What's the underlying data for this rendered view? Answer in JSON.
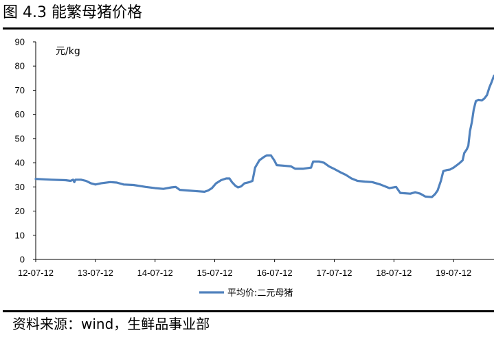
{
  "figure": {
    "title": "图 4.3 能繁母猪价格",
    "source": "资料来源：wind，生鲜品事业部"
  },
  "chart_data": {
    "type": "line",
    "unit_label": "元/kg",
    "ylim": [
      0,
      90
    ],
    "yticks": [
      0,
      10,
      20,
      30,
      40,
      50,
      60,
      70,
      80,
      90
    ],
    "xlim": [
      "2012-07-12",
      "2020-03-15"
    ],
    "xticks": [
      "12-07-12",
      "13-07-12",
      "14-07-12",
      "15-07-12",
      "16-07-12",
      "17-07-12",
      "18-07-12",
      "19-07-12"
    ],
    "grid": false,
    "legend_position": "bottom",
    "color": "#4F81BD",
    "series": [
      {
        "name": "平均价:二元母猪",
        "points": [
          [
            "2012-07-12",
            33.3
          ],
          [
            "2012-10-15",
            33.0
          ],
          [
            "2013-01-10",
            32.8
          ],
          [
            "2013-02-10",
            32.5
          ],
          [
            "2013-02-25",
            33.0
          ],
          [
            "2013-03-05",
            32.0
          ],
          [
            "2013-03-12",
            33.0
          ],
          [
            "2013-04-15",
            33.0
          ],
          [
            "2013-05-15",
            32.5
          ],
          [
            "2013-06-15",
            31.5
          ],
          [
            "2013-07-12",
            31.0
          ],
          [
            "2013-08-15",
            31.5
          ],
          [
            "2013-10-10",
            32.0
          ],
          [
            "2013-11-20",
            31.8
          ],
          [
            "2014-01-01",
            31.0
          ],
          [
            "2014-03-01",
            30.8
          ],
          [
            "2014-05-15",
            30.0
          ],
          [
            "2014-07-12",
            29.5
          ],
          [
            "2014-09-01",
            29.2
          ],
          [
            "2014-10-20",
            29.8
          ],
          [
            "2014-11-15",
            30.0
          ],
          [
            "2014-12-10",
            28.8
          ],
          [
            "2015-02-01",
            28.5
          ],
          [
            "2015-04-01",
            28.2
          ],
          [
            "2015-05-10",
            28.0
          ],
          [
            "2015-06-01",
            28.5
          ],
          [
            "2015-06-25",
            29.5
          ],
          [
            "2015-07-20",
            31.5
          ],
          [
            "2015-08-20",
            32.8
          ],
          [
            "2015-09-20",
            33.5
          ],
          [
            "2015-10-10",
            33.5
          ],
          [
            "2015-10-25",
            32.0
          ],
          [
            "2015-11-15",
            30.5
          ],
          [
            "2015-12-01",
            29.8
          ],
          [
            "2015-12-20",
            30.2
          ],
          [
            "2016-01-10",
            31.5
          ],
          [
            "2016-02-10",
            32.0
          ],
          [
            "2016-02-28",
            32.5
          ],
          [
            "2016-03-15",
            38.0
          ],
          [
            "2016-04-10",
            41.0
          ],
          [
            "2016-05-10",
            42.5
          ],
          [
            "2016-05-25",
            43.0
          ],
          [
            "2016-06-20",
            43.0
          ],
          [
            "2016-07-10",
            41.0
          ],
          [
            "2016-07-25",
            39.0
          ],
          [
            "2016-09-01",
            38.8
          ],
          [
            "2016-10-20",
            38.5
          ],
          [
            "2016-11-15",
            37.5
          ],
          [
            "2017-01-01",
            37.5
          ],
          [
            "2017-02-20",
            38.0
          ],
          [
            "2017-03-05",
            40.5
          ],
          [
            "2017-04-10",
            40.5
          ],
          [
            "2017-05-10",
            40.0
          ],
          [
            "2017-06-10",
            38.5
          ],
          [
            "2017-07-10",
            37.5
          ],
          [
            "2017-08-20",
            36.0
          ],
          [
            "2017-09-20",
            35.0
          ],
          [
            "2017-10-25",
            33.5
          ],
          [
            "2017-12-01",
            32.5
          ],
          [
            "2018-01-15",
            32.2
          ],
          [
            "2018-03-01",
            32.0
          ],
          [
            "2018-04-20",
            31.0
          ],
          [
            "2018-06-15",
            29.5
          ],
          [
            "2018-07-25",
            30.0
          ],
          [
            "2018-08-20",
            27.5
          ],
          [
            "2018-10-20",
            27.2
          ],
          [
            "2018-11-20",
            27.8
          ],
          [
            "2018-12-20",
            27.2
          ],
          [
            "2019-01-20",
            26.0
          ],
          [
            "2019-03-01",
            25.8
          ],
          [
            "2019-03-20",
            27.0
          ],
          [
            "2019-04-05",
            28.5
          ],
          [
            "2019-04-25",
            32.5
          ],
          [
            "2019-05-10",
            36.5
          ],
          [
            "2019-06-01",
            37.0
          ],
          [
            "2019-06-20",
            37.2
          ],
          [
            "2019-07-12",
            38.0
          ],
          [
            "2019-08-01",
            39.0
          ],
          [
            "2019-08-20",
            40.0
          ],
          [
            "2019-09-05",
            41.0
          ],
          [
            "2019-09-15",
            44.0
          ],
          [
            "2019-09-30",
            45.5
          ],
          [
            "2019-10-10",
            47.0
          ],
          [
            "2019-10-20",
            53.0
          ],
          [
            "2019-11-01",
            57.0
          ],
          [
            "2019-11-12",
            62.0
          ],
          [
            "2019-11-25",
            65.5
          ],
          [
            "2019-12-10",
            66.0
          ],
          [
            "2020-01-01",
            65.8
          ],
          [
            "2020-01-15",
            66.5
          ],
          [
            "2020-02-01",
            68.0
          ],
          [
            "2020-02-15",
            71.0
          ],
          [
            "2020-03-01",
            73.5
          ],
          [
            "2020-03-15",
            76.0
          ]
        ]
      }
    ]
  }
}
